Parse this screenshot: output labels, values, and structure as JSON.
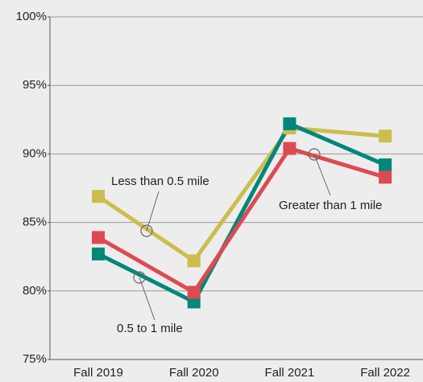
{
  "chart_data": {
    "type": "line",
    "categories": [
      "Fall 2019",
      "Fall 2020",
      "Fall 2021",
      "Fall 2022"
    ],
    "series": [
      {
        "name": "Less than 0.5 mile",
        "color": "#cbbd4e",
        "values": [
          86.9,
          82.2,
          91.9,
          91.3
        ]
      },
      {
        "name": "0.5 to 1 mile",
        "color": "#00877a",
        "values": [
          82.7,
          79.2,
          92.2,
          89.2
        ]
      },
      {
        "name": "Greater than 1 mile",
        "color": "#de4a51",
        "values": [
          83.9,
          79.9,
          90.4,
          88.3
        ]
      }
    ],
    "ylim": [
      75,
      100
    ],
    "yticks": [
      {
        "value": 75,
        "label": "75%"
      },
      {
        "value": 80,
        "label": "80%"
      },
      {
        "value": 85,
        "label": "85%"
      },
      {
        "value": 90,
        "label": "90%"
      },
      {
        "value": 95,
        "label": "95%"
      },
      {
        "value": 100,
        "label": "100%"
      }
    ],
    "grid": true
  }
}
